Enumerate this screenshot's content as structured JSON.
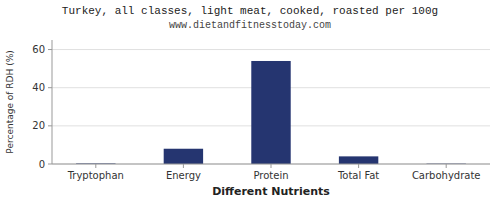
{
  "chart_data": {
    "type": "bar",
    "title": "Turkey, all classes, light meat, cooked, roasted per 100g",
    "subtitle": "www.dietandfitnesstoday.com",
    "xlabel": "Different Nutrients",
    "ylabel": "Percentage of RDH (%)",
    "categories": [
      "Tryptophan",
      "Energy",
      "Protein",
      "Total Fat",
      "Carbohydrate"
    ],
    "values": [
      0.3,
      8.0,
      54.0,
      4.0,
      0.2
    ],
    "color": "#253570",
    "ylim": [
      0,
      65
    ],
    "yticks": [
      0,
      20,
      40,
      60
    ],
    "grid": true
  }
}
